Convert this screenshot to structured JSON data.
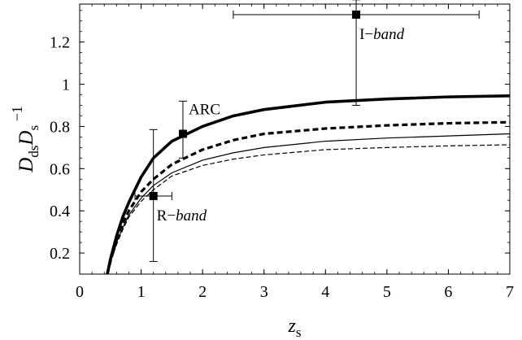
{
  "chart_data": {
    "type": "scatter",
    "title": "",
    "xlabel": {
      "base": "z",
      "sub": "s"
    },
    "ylabel": {
      "d_sub": "ds",
      "s_sub": "s",
      "exp": "−1"
    },
    "xlim": [
      0,
      7
    ],
    "ylim": [
      0.1,
      1.38
    ],
    "grid": false,
    "x_ticks": [
      0,
      1,
      2,
      3,
      4,
      5,
      6,
      7
    ],
    "y_ticks": [
      0.2,
      0.4,
      0.6,
      0.8,
      1,
      1.2
    ],
    "series": [
      {
        "style": "thick-solid",
        "x": [
          0.45,
          0.5,
          0.6,
          0.7,
          0.8,
          1.0,
          1.2,
          1.5,
          2.0,
          2.5,
          3.0,
          4.0,
          5.0,
          6.0,
          7.0
        ],
        "y": [
          0.1,
          0.17,
          0.28,
          0.37,
          0.44,
          0.56,
          0.65,
          0.73,
          0.8,
          0.85,
          0.88,
          0.915,
          0.93,
          0.94,
          0.945
        ]
      },
      {
        "style": "thick-dashed",
        "x": [
          0.45,
          0.5,
          0.6,
          0.7,
          0.8,
          1.0,
          1.2,
          1.5,
          2.0,
          2.5,
          3.0,
          4.0,
          5.0,
          6.0,
          7.0
        ],
        "y": [
          0.1,
          0.16,
          0.26,
          0.34,
          0.4,
          0.49,
          0.55,
          0.62,
          0.69,
          0.735,
          0.765,
          0.79,
          0.805,
          0.815,
          0.82
        ]
      },
      {
        "style": "thin-solid",
        "x": [
          0.45,
          0.5,
          0.6,
          0.7,
          0.8,
          1.0,
          1.2,
          1.5,
          2.0,
          2.5,
          3.0,
          4.0,
          5.0,
          6.0,
          7.0
        ],
        "y": [
          0.1,
          0.16,
          0.25,
          0.32,
          0.38,
          0.46,
          0.52,
          0.58,
          0.64,
          0.675,
          0.7,
          0.73,
          0.745,
          0.755,
          0.765
        ]
      },
      {
        "style": "thin-dashed",
        "x": [
          0.45,
          0.5,
          0.6,
          0.7,
          0.8,
          1.0,
          1.2,
          1.5,
          2.0,
          2.5,
          3.0,
          4.0,
          5.0,
          6.0,
          7.0
        ],
        "y": [
          0.1,
          0.155,
          0.24,
          0.31,
          0.37,
          0.445,
          0.5,
          0.565,
          0.615,
          0.645,
          0.665,
          0.69,
          0.7,
          0.708,
          0.713
        ]
      }
    ],
    "points": [
      {
        "label": "ARC",
        "italic": "",
        "x": 1.68,
        "y": 0.765,
        "xerr": [
          1.68,
          1.68
        ],
        "yerr": [
          0.65,
          0.92
        ],
        "label_pos": "upper-right"
      },
      {
        "label": "I−",
        "italic": "band",
        "x": 4.5,
        "y": 1.33,
        "xerr": [
          2.5,
          6.5
        ],
        "yerr": [
          0.9,
          1.4
        ],
        "label_pos": "below-right"
      },
      {
        "label": "R−",
        "italic": "band",
        "x": 1.2,
        "y": 0.47,
        "xerr": [
          0.9,
          1.5
        ],
        "yerr": [
          0.16,
          0.785
        ],
        "label_pos": "below-right"
      }
    ]
  }
}
